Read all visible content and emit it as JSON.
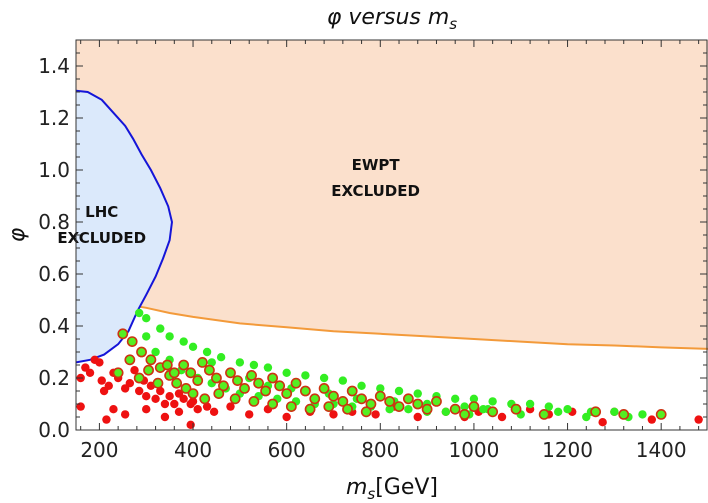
{
  "chart_data": {
    "type": "scatter",
    "title": {
      "main": "φ versus m",
      "sub": "s"
    },
    "xlabel": {
      "main": "m",
      "sub": "s",
      "suffix": "[GeV]"
    },
    "ylabel": "φ",
    "xlim": [
      150,
      1500
    ],
    "ylim": [
      0,
      1.5
    ],
    "xticks": [
      200,
      400,
      600,
      800,
      1000,
      1200,
      1400
    ],
    "yticks": [
      0.0,
      0.2,
      0.4,
      0.6,
      0.8,
      1.0,
      1.2,
      1.4
    ],
    "ytick_labels": [
      "0.0",
      "0.2",
      "0.4",
      "0.6",
      "0.8",
      "1.0",
      "1.2",
      "1.4"
    ],
    "regions": [
      {
        "name": "EWPT EXCLUDED",
        "lines": [
          "EWPT",
          "EXCLUDED"
        ],
        "fill": "#fbe0cc",
        "stroke": "#f39a3a",
        "boundary": [
          [
            150,
            0.495
          ],
          [
            200,
            0.49
          ],
          [
            250,
            0.485
          ],
          [
            300,
            0.47
          ],
          [
            350,
            0.45
          ],
          [
            400,
            0.435
          ],
          [
            500,
            0.41
          ],
          [
            600,
            0.395
          ],
          [
            700,
            0.38
          ],
          [
            800,
            0.37
          ],
          [
            900,
            0.36
          ],
          [
            1000,
            0.35
          ],
          [
            1100,
            0.34
          ],
          [
            1200,
            0.33
          ],
          [
            1300,
            0.325
          ],
          [
            1400,
            0.318
          ],
          [
            1500,
            0.312
          ]
        ]
      },
      {
        "name": "LHC EXCLUDED",
        "lines": [
          "LHC",
          "EXCLUDED"
        ],
        "fill": "#dbe9fb",
        "stroke": "#1515d8",
        "boundary": [
          [
            150,
            1.305
          ],
          [
            175,
            1.3
          ],
          [
            205,
            1.27
          ],
          [
            230,
            1.22
          ],
          [
            255,
            1.17
          ],
          [
            272,
            1.12
          ],
          [
            290,
            1.06
          ],
          [
            310,
            1.0
          ],
          [
            330,
            0.93
          ],
          [
            347,
            0.86
          ],
          [
            355,
            0.8
          ],
          [
            350,
            0.73
          ],
          [
            336,
            0.66
          ],
          [
            320,
            0.59
          ],
          [
            300,
            0.52
          ],
          [
            282,
            0.46
          ],
          [
            262,
            0.38
          ],
          [
            240,
            0.33
          ],
          [
            210,
            0.29
          ],
          [
            180,
            0.27
          ],
          [
            150,
            0.26
          ]
        ]
      }
    ],
    "series": [
      {
        "name": "red",
        "color": "#ee1111",
        "points": [
          [
            160,
            0.2
          ],
          [
            170,
            0.24
          ],
          [
            180,
            0.22
          ],
          [
            190,
            0.27
          ],
          [
            200,
            0.26
          ],
          [
            205,
            0.19
          ],
          [
            210,
            0.15
          ],
          [
            220,
            0.17
          ],
          [
            230,
            0.22
          ],
          [
            240,
            0.2
          ],
          [
            255,
            0.16
          ],
          [
            265,
            0.18
          ],
          [
            275,
            0.23
          ],
          [
            285,
            0.15
          ],
          [
            295,
            0.19
          ],
          [
            300,
            0.13
          ],
          [
            310,
            0.17
          ],
          [
            320,
            0.12
          ],
          [
            330,
            0.15
          ],
          [
            340,
            0.1
          ],
          [
            350,
            0.13
          ],
          [
            360,
            0.1
          ],
          [
            370,
            0.14
          ],
          [
            380,
            0.12
          ],
          [
            395,
            0.1
          ],
          [
            410,
            0.08
          ],
          [
            160,
            0.09
          ],
          [
            230,
            0.08
          ],
          [
            255,
            0.06
          ],
          [
            300,
            0.08
          ],
          [
            340,
            0.05
          ],
          [
            370,
            0.07
          ],
          [
            400,
            0.11
          ],
          [
            430,
            0.09
          ],
          [
            445,
            0.07
          ],
          [
            480,
            0.09
          ],
          [
            520,
            0.06
          ],
          [
            560,
            0.08
          ],
          [
            600,
            0.05
          ],
          [
            650,
            0.07
          ],
          [
            700,
            0.06
          ],
          [
            740,
            0.07
          ],
          [
            790,
            0.06
          ],
          [
            830,
            0.09
          ],
          [
            880,
            0.05
          ],
          [
            940,
            0.07
          ],
          [
            980,
            0.05
          ],
          [
            1010,
            0.07
          ],
          [
            1060,
            0.05
          ],
          [
            1120,
            0.08
          ],
          [
            1160,
            0.06
          ],
          [
            1210,
            0.07
          ],
          [
            1275,
            0.03
          ],
          [
            1300,
            0.07
          ],
          [
            1380,
            0.04
          ],
          [
            1480,
            0.04
          ],
          [
            215,
            0.04
          ],
          [
            395,
            0.02
          ]
        ]
      },
      {
        "name": "green",
        "color": "#33ee22",
        "points": [
          [
            285,
            0.45
          ],
          [
            300,
            0.43
          ],
          [
            330,
            0.39
          ],
          [
            350,
            0.36
          ],
          [
            380,
            0.34
          ],
          [
            400,
            0.32
          ],
          [
            430,
            0.3
          ],
          [
            460,
            0.28
          ],
          [
            500,
            0.26
          ],
          [
            530,
            0.25
          ],
          [
            560,
            0.24
          ],
          [
            600,
            0.22
          ],
          [
            640,
            0.21
          ],
          [
            680,
            0.2
          ],
          [
            720,
            0.19
          ],
          [
            760,
            0.17
          ],
          [
            800,
            0.16
          ],
          [
            840,
            0.15
          ],
          [
            880,
            0.14
          ],
          [
            920,
            0.13
          ],
          [
            960,
            0.12
          ],
          [
            1000,
            0.12
          ],
          [
            1040,
            0.11
          ],
          [
            1080,
            0.1
          ],
          [
            1120,
            0.1
          ],
          [
            1160,
            0.09
          ],
          [
            1200,
            0.08
          ],
          [
            1250,
            0.07
          ],
          [
            1300,
            0.07
          ],
          [
            1360,
            0.06
          ],
          [
            300,
            0.36
          ],
          [
            320,
            0.3
          ],
          [
            350,
            0.27
          ],
          [
            375,
            0.23
          ],
          [
            410,
            0.2
          ],
          [
            440,
            0.18
          ],
          [
            470,
            0.16
          ],
          [
            500,
            0.14
          ],
          [
            540,
            0.13
          ],
          [
            580,
            0.12
          ],
          [
            620,
            0.11
          ],
          [
            660,
            0.1
          ],
          [
            700,
            0.1
          ],
          [
            740,
            0.09
          ],
          [
            780,
            0.09
          ],
          [
            820,
            0.08
          ],
          [
            860,
            0.08
          ],
          [
            900,
            0.07
          ],
          [
            940,
            0.07
          ],
          [
            990,
            0.06
          ],
          [
            1030,
            0.08
          ],
          [
            1100,
            0.06
          ],
          [
            1180,
            0.07
          ],
          [
            1240,
            0.05
          ],
          [
            1330,
            0.05
          ],
          [
            440,
            0.26
          ],
          [
            520,
            0.2
          ],
          [
            560,
            0.17
          ],
          [
            610,
            0.16
          ],
          [
            690,
            0.14
          ],
          [
            750,
            0.12
          ],
          [
            830,
            0.11
          ],
          [
            900,
            0.1
          ],
          [
            980,
            0.09
          ],
          [
            1020,
            0.08
          ]
        ]
      },
      {
        "name": "green-red-edge",
        "color": "#55ee22",
        "stroke": "#cc3311",
        "points": [
          [
            250,
            0.37
          ],
          [
            270,
            0.34
          ],
          [
            290,
            0.3
          ],
          [
            310,
            0.27
          ],
          [
            330,
            0.24
          ],
          [
            350,
            0.21
          ],
          [
            365,
            0.18
          ],
          [
            380,
            0.25
          ],
          [
            395,
            0.22
          ],
          [
            410,
            0.19
          ],
          [
            420,
            0.26
          ],
          [
            435,
            0.23
          ],
          [
            450,
            0.2
          ],
          [
            465,
            0.17
          ],
          [
            480,
            0.22
          ],
          [
            495,
            0.19
          ],
          [
            510,
            0.16
          ],
          [
            525,
            0.21
          ],
          [
            540,
            0.18
          ],
          [
            555,
            0.15
          ],
          [
            570,
            0.2
          ],
          [
            585,
            0.17
          ],
          [
            600,
            0.14
          ],
          [
            620,
            0.18
          ],
          [
            640,
            0.15
          ],
          [
            660,
            0.12
          ],
          [
            680,
            0.16
          ],
          [
            700,
            0.13
          ],
          [
            720,
            0.11
          ],
          [
            740,
            0.15
          ],
          [
            760,
            0.12
          ],
          [
            780,
            0.1
          ],
          [
            800,
            0.13
          ],
          [
            820,
            0.11
          ],
          [
            840,
            0.09
          ],
          [
            860,
            0.12
          ],
          [
            880,
            0.1
          ],
          [
            900,
            0.08
          ],
          [
            920,
            0.11
          ],
          [
            960,
            0.08
          ],
          [
            980,
            0.06
          ],
          [
            1000,
            0.09
          ],
          [
            1040,
            0.07
          ],
          [
            1090,
            0.08
          ],
          [
            1150,
            0.06
          ],
          [
            1260,
            0.07
          ],
          [
            1320,
            0.06
          ],
          [
            1400,
            0.06
          ],
          [
            240,
            0.22
          ],
          [
            265,
            0.27
          ],
          [
            285,
            0.2
          ],
          [
            305,
            0.23
          ],
          [
            325,
            0.18
          ],
          [
            345,
            0.25
          ],
          [
            360,
            0.22
          ],
          [
            385,
            0.16
          ],
          [
            400,
            0.14
          ],
          [
            425,
            0.12
          ],
          [
            455,
            0.14
          ],
          [
            490,
            0.12
          ],
          [
            530,
            0.11
          ],
          [
            570,
            0.1
          ],
          [
            610,
            0.09
          ],
          [
            650,
            0.08
          ],
          [
            690,
            0.09
          ],
          [
            730,
            0.08
          ],
          [
            770,
            0.07
          ]
        ]
      }
    ]
  }
}
